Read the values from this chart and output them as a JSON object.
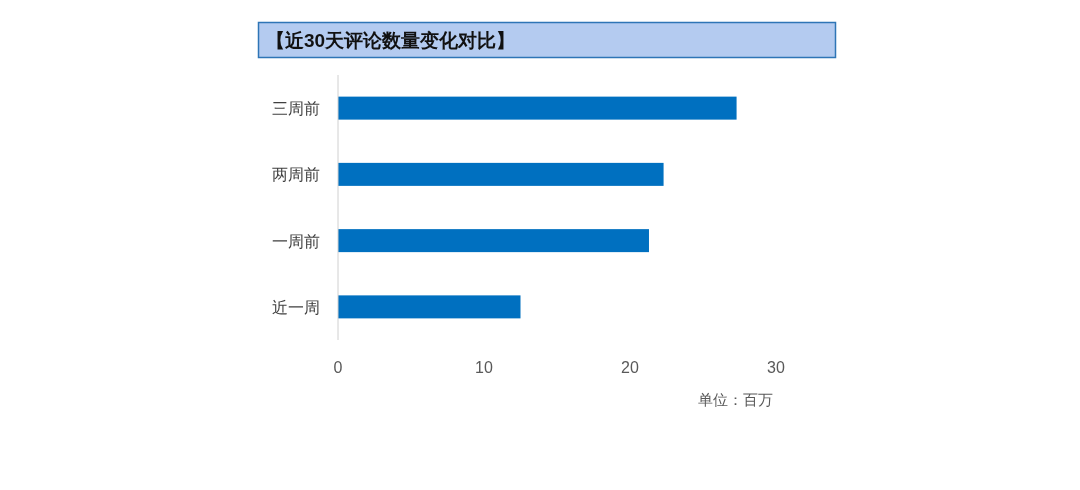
{
  "chart_data": {
    "type": "bar",
    "orientation": "horizontal",
    "title": "【近30天评论数量变化对比】",
    "categories": [
      "三周前",
      "两周前",
      "一周前",
      "近一周"
    ],
    "values": [
      27.3,
      22.3,
      21.3,
      12.5
    ],
    "color": "#0070c0",
    "xlim": [
      0,
      30
    ],
    "xticks": [
      0,
      10,
      20,
      30
    ],
    "annotations": [
      "单位：百万"
    ]
  }
}
